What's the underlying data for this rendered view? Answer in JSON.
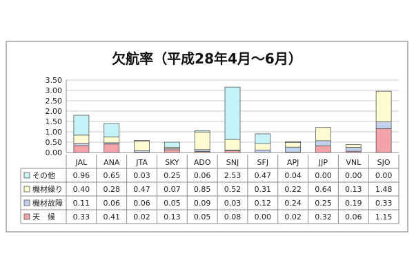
{
  "chart_data": {
    "type": "bar",
    "stacked": true,
    "title": "欠航率（平成28年4月〜6月）",
    "categories": [
      "JAL",
      "ANA",
      "JTA",
      "SKY",
      "ADO",
      "SNJ",
      "SFJ",
      "APJ",
      "JJP",
      "VNL",
      "SJO"
    ],
    "y_ticks": [
      "0.00",
      "0.50",
      "1.00",
      "1.50",
      "2.00",
      "2.50",
      "3.00",
      "3.50"
    ],
    "ylim": [
      0,
      3.5
    ],
    "grid": true,
    "series": [
      {
        "name": "天　候",
        "color": "#f4a3a8",
        "values": [
          0.33,
          0.41,
          0.02,
          0.13,
          0.05,
          0.08,
          0.0,
          0.02,
          0.32,
          0.06,
          1.15
        ],
        "labels": [
          "0.33",
          "0.41",
          "0.02",
          "0.13",
          "0.05",
          "0.08",
          "0.00",
          "0.02",
          "0.32",
          "0.06",
          "1.15"
        ]
      },
      {
        "name": "機材故障",
        "color": "#c3d1ec",
        "values": [
          0.11,
          0.06,
          0.06,
          0.05,
          0.09,
          0.03,
          0.12,
          0.24,
          0.25,
          0.19,
          0.33
        ],
        "labels": [
          "0.11",
          "0.06",
          "0.06",
          "0.05",
          "0.09",
          "0.03",
          "0.12",
          "0.24",
          "0.25",
          "0.19",
          "0.33"
        ]
      },
      {
        "name": "機材繰り",
        "color": "#fefbd2",
        "values": [
          0.4,
          0.28,
          0.47,
          0.07,
          0.85,
          0.52,
          0.31,
          0.22,
          0.64,
          0.13,
          1.48
        ],
        "labels": [
          "0.40",
          "0.28",
          "0.47",
          "0.07",
          "0.85",
          "0.52",
          "0.31",
          "0.22",
          "0.64",
          "0.13",
          "1.48"
        ]
      },
      {
        "name": "その他",
        "color": "#c6f3f8",
        "values": [
          0.96,
          0.65,
          0.03,
          0.25,
          0.06,
          2.53,
          0.47,
          0.04,
          0.0,
          0.0,
          0.0
        ],
        "labels": [
          "0.96",
          "0.65",
          "0.03",
          "0.25",
          "0.06",
          "2.53",
          "0.47",
          "0.04",
          "0.00",
          "0.00",
          "0.00"
        ]
      }
    ],
    "table_row_order": [
      "その他",
      "機材繰り",
      "機材故障",
      "天　候"
    ]
  }
}
